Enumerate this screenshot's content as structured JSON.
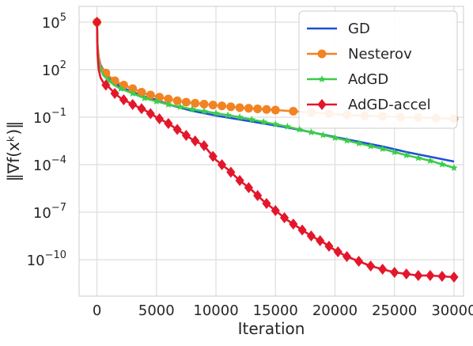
{
  "chart_data": {
    "type": "line",
    "title": "",
    "xlabel": "Iteration",
    "ylabel": "‖∇f(xᵏ)‖",
    "xlim": [
      -1500,
      30800
    ],
    "ylim_log10": [
      -12.3,
      6.0
    ],
    "y_scale": "log",
    "grid": true,
    "legend_position": "top-right",
    "x_ticks": [
      0,
      5000,
      10000,
      15000,
      20000,
      25000,
      30000
    ],
    "x_tick_labels": [
      "0",
      "5000",
      "10000",
      "15000",
      "20000",
      "25000",
      "30000"
    ],
    "y_ticks_log10": [
      5,
      2,
      -1,
      -4,
      -7,
      -10
    ],
    "y_tick_labels": [
      {
        "base": "10",
        "exp": "5"
      },
      {
        "base": "10",
        "exp": "2"
      },
      {
        "base": "10",
        "exp": "−1"
      },
      {
        "base": "10",
        "exp": "−4"
      },
      {
        "base": "10",
        "exp": "−7"
      },
      {
        "base": "10",
        "exp": "−10"
      }
    ],
    "series": [
      {
        "name": "GD",
        "color": "#1f4fd6",
        "marker": "none",
        "x": [
          0,
          50,
          150,
          300,
          600,
          1000,
          1500,
          2000,
          3000,
          4000,
          5000,
          6000,
          7000,
          8000,
          9000,
          10000,
          12000,
          14000,
          16000,
          18000,
          20000,
          22000,
          24000,
          26000,
          28000,
          30000
        ],
        "log10_y": [
          5.0,
          3.5,
          2.8,
          2.3,
          1.9,
          1.5,
          1.2,
          0.9,
          0.6,
          0.3,
          0.1,
          -0.2,
          -0.4,
          -0.6,
          -0.75,
          -0.9,
          -1.15,
          -1.4,
          -1.65,
          -1.95,
          -2.25,
          -2.55,
          -2.85,
          -3.2,
          -3.5,
          -3.8
        ]
      },
      {
        "name": "Nesterov",
        "color": "#f28322",
        "marker": "circle",
        "x": [
          0,
          50,
          150,
          300,
          600,
          1000,
          1500,
          2000,
          3000,
          4000,
          5000,
          6000,
          7000,
          8000,
          10000,
          12000,
          14000,
          16000,
          18000,
          20000,
          22000,
          24000,
          26000,
          28000,
          30000
        ],
        "log10_y": [
          5.0,
          3.5,
          2.8,
          2.2,
          1.9,
          1.6,
          1.3,
          1.1,
          0.8,
          0.5,
          0.3,
          0.15,
          0.0,
          -0.1,
          -0.25,
          -0.4,
          -0.5,
          -0.6,
          -0.7,
          -0.8,
          -0.9,
          -0.95,
          -1.0,
          -1.05,
          -1.1
        ],
        "marker_x": [
          0,
          750,
          1500,
          2250,
          3000,
          3750,
          4500,
          5250,
          6000,
          6750,
          7500,
          8250,
          9000,
          9750,
          10500,
          11250,
          12000,
          12750,
          13500,
          14250,
          15000,
          16500,
          18000,
          19500,
          21000,
          22500,
          24000,
          25500,
          27000,
          28500,
          30000
        ]
      },
      {
        "name": "AdGD",
        "color": "#3bcc4a",
        "marker": "star",
        "x": [
          0,
          50,
          150,
          300,
          600,
          1000,
          1500,
          2000,
          3000,
          4000,
          5000,
          6000,
          7000,
          8000,
          10000,
          12000,
          14000,
          16000,
          18000,
          20000,
          22000,
          24000,
          26000,
          28000,
          30000
        ],
        "log10_y": [
          5.0,
          3.2,
          2.5,
          2.0,
          1.6,
          1.3,
          1.0,
          0.8,
          0.5,
          0.2,
          0.0,
          -0.2,
          -0.35,
          -0.5,
          -0.75,
          -1.0,
          -1.3,
          -1.6,
          -1.95,
          -2.3,
          -2.65,
          -3.0,
          -3.4,
          -3.75,
          -4.2
        ],
        "marker_x": [
          0,
          1000,
          2000,
          3000,
          4000,
          5000,
          6000,
          7000,
          8000,
          9000,
          10000,
          11000,
          12000,
          13000,
          14000,
          15000,
          16000,
          17000,
          18000,
          19000,
          20000,
          21000,
          22000,
          23000,
          24000,
          25000,
          26000,
          27000,
          28000,
          29000,
          30000
        ]
      },
      {
        "name": "AdGD-accel",
        "color": "#e3172b",
        "marker": "diamond",
        "x": [
          0,
          50,
          150,
          300,
          600,
          1000,
          1500,
          2000,
          3000,
          4000,
          5000,
          6000,
          7000,
          8000,
          9000,
          10000,
          11000,
          12000,
          13000,
          14000,
          15000,
          16000,
          17000,
          18000,
          19000,
          20000,
          21000,
          22000,
          23000,
          24000,
          25000,
          26000,
          27000,
          28000,
          29000,
          30000
        ],
        "log10_y": [
          5.0,
          3.0,
          2.0,
          1.5,
          1.1,
          0.9,
          0.5,
          0.2,
          -0.2,
          -0.55,
          -1.0,
          -1.4,
          -1.9,
          -2.4,
          -2.8,
          -3.7,
          -4.3,
          -5.0,
          -5.6,
          -6.3,
          -6.9,
          -7.5,
          -8.0,
          -8.5,
          -8.9,
          -9.4,
          -9.8,
          -10.1,
          -10.4,
          -10.6,
          -10.8,
          -10.9,
          -11.0,
          -11.0,
          -11.05,
          -11.1
        ],
        "marker_x": [
          0,
          750,
          1500,
          2250,
          3000,
          3750,
          4500,
          5250,
          6000,
          6750,
          7500,
          8250,
          9000,
          9750,
          10500,
          11250,
          12000,
          12750,
          13500,
          14250,
          15000,
          15750,
          16500,
          17250,
          18000,
          18750,
          19500,
          20250,
          21000,
          22000,
          23000,
          24000,
          25000,
          26000,
          27000,
          28000,
          29000,
          30000
        ]
      }
    ]
  }
}
